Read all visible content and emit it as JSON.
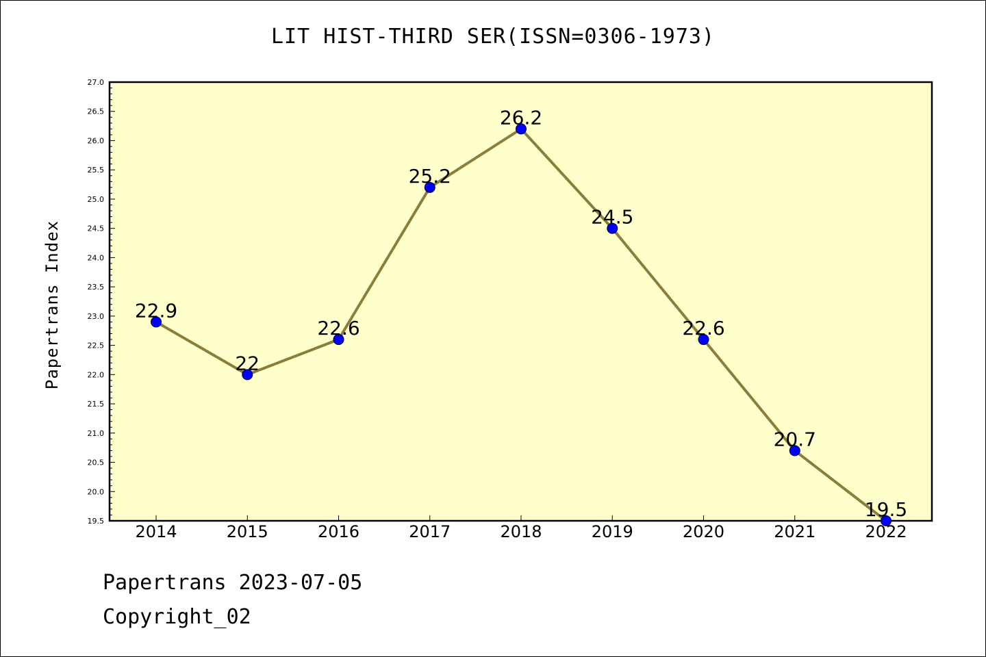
{
  "chart_data": {
    "type": "line",
    "title": "LIT HIST-THIRD SER(ISSN=0306-1973)",
    "xlabel": "",
    "ylabel": "Papertrans Index",
    "categories": [
      "2014",
      "2015",
      "2016",
      "2017",
      "2018",
      "2019",
      "2020",
      "2021",
      "2022"
    ],
    "series": [
      {
        "values": [
          22.9,
          22.0,
          22.6,
          25.2,
          26.2,
          24.5,
          22.6,
          20.7,
          19.5
        ],
        "labels": [
          "22.9",
          "22",
          "22.6",
          "25.2",
          "26.2",
          "24.5",
          "22.6",
          "20.7",
          "19.5"
        ]
      }
    ],
    "ylim": [
      19.5,
      27.0
    ],
    "yticks": [
      "19.5",
      "20.0",
      "20.5",
      "21.0",
      "21.5",
      "22.0",
      "22.5",
      "23.0",
      "23.5",
      "24.0",
      "24.5",
      "25.0",
      "25.5",
      "26.0",
      "26.5",
      "27.0"
    ],
    "grid": false,
    "colors": {
      "plot_background": "#ffffcc",
      "line": "#8b7d3a",
      "marker": "#0000ff",
      "marker_edge": "#000033"
    }
  },
  "footer": {
    "line1": "Papertrans 2023-07-05",
    "line2": "Copyright_02"
  }
}
